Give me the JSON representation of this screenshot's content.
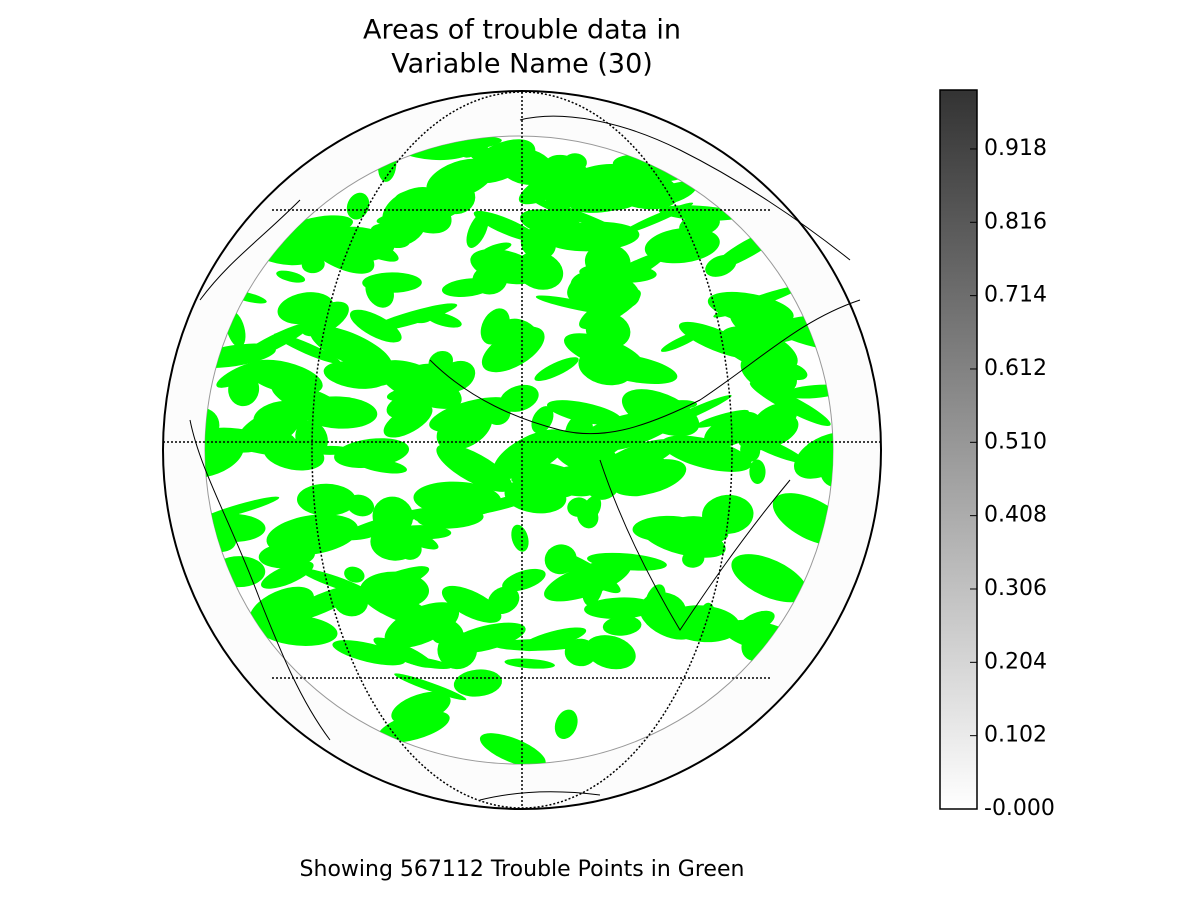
{
  "title": [
    "Areas of trouble data in",
    "Variable Name (30)"
  ],
  "colorbar": {
    "lim": [
      0,
      1.0
    ],
    "ticks": [
      {
        "value": 0,
        "label": "-0.000"
      },
      0.102,
      0.204,
      0.306,
      0.408,
      {
        "value": 0.51,
        "label": "0.510"
      },
      0.612,
      0.714,
      0.816,
      0.918
    ]
  },
  "caption": "Showing 567112 Trouble Points in Green"
}
